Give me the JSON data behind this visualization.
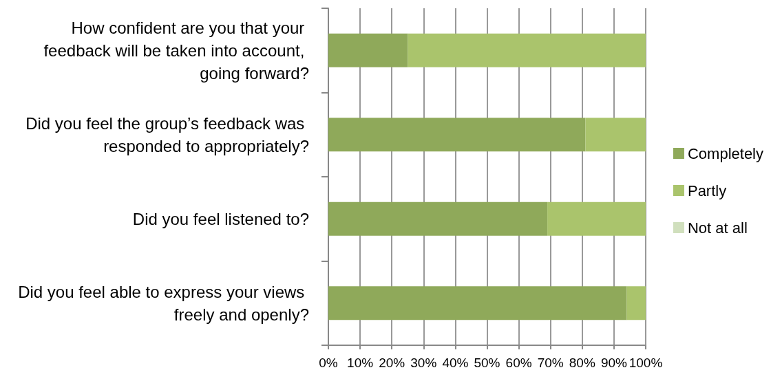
{
  "chart_data": {
    "type": "bar",
    "orientation": "horizontal",
    "stacked": true,
    "categories": [
      "How confident are you that your feedback will be taken into account, going forward?",
      "Did you feel the group’s feedback was responded to appropriately?",
      "Did you feel listened to?",
      "Did you feel able to express your views freely and openly?"
    ],
    "series": [
      {
        "name": "Completely",
        "color": "#8fa95a",
        "values": [
          25,
          81,
          69,
          94
        ]
      },
      {
        "name": "Partly",
        "color": "#aac46c",
        "values": [
          75,
          19,
          31,
          6
        ]
      },
      {
        "name": "Not at all",
        "color": "#d0dfbd",
        "values": [
          0,
          0,
          0,
          0
        ]
      }
    ],
    "xlim": [
      0,
      100
    ],
    "xticks": [
      {
        "value": 0,
        "label": "0%"
      },
      {
        "value": 10,
        "label": "10%"
      },
      {
        "value": 20,
        "label": "20%"
      },
      {
        "value": 30,
        "label": "30%"
      },
      {
        "value": 40,
        "label": "40%"
      },
      {
        "value": 50,
        "label": "50%"
      },
      {
        "value": 60,
        "label": "60%"
      },
      {
        "value": 70,
        "label": "70%"
      },
      {
        "value": 80,
        "label": "80%"
      },
      {
        "value": 90,
        "label": "90%"
      },
      {
        "value": 100,
        "label": "100%"
      }
    ],
    "grid": "x",
    "legend": "right"
  }
}
